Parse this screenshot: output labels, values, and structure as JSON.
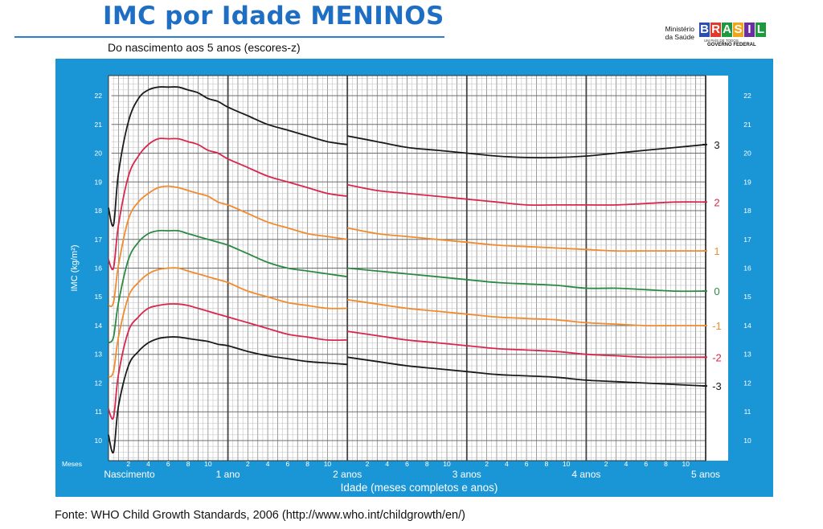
{
  "header": {
    "title": "IMC por Idade MENINOS",
    "subtitle": "Do nascimento aos 5 anos (escores-z)"
  },
  "logo": {
    "ministerio_line1": "Ministério",
    "ministerio_line2": "da Saúde",
    "letters": [
      "B",
      "R",
      "A",
      "S",
      "I",
      "L"
    ],
    "letter_colors": [
      "#2a4fb0",
      "#e03b2a",
      "#1d9a3e",
      "#f2a51c",
      "#6a2f9e",
      "#1d9a3e"
    ],
    "tagline": "UM PAÍS DE TODOS",
    "governo": "GOVERNO FEDERAL"
  },
  "source": "Fonte: WHO Child Growth Standards, 2006 (http://www.who.int/childgrowth/en/)",
  "chart_data": {
    "type": "line",
    "xlabel": "Idade (meses completos e anos)",
    "ylabel": "IMC (kg/m²)",
    "xlim": [
      0,
      60
    ],
    "ylim": [
      9.3,
      22.7
    ],
    "y_ticks": [
      10,
      11,
      12,
      13,
      14,
      15,
      16,
      17,
      18,
      19,
      20,
      21,
      22
    ],
    "month_label": "Meses",
    "month_ticks": [
      "2",
      "4",
      "6",
      "8",
      "10"
    ],
    "year_labels": [
      {
        "x": 0,
        "label": "Nascimento"
      },
      {
        "x": 12,
        "label": "1 ano"
      },
      {
        "x": 24,
        "label": "2 anos"
      },
      {
        "x": 36,
        "label": "3 anos"
      },
      {
        "x": 48,
        "label": "4 anos"
      },
      {
        "x": 60,
        "label": "5 anos"
      }
    ],
    "grid": true,
    "x_break": 24,
    "series": [
      {
        "name": "3",
        "color": "#1a1a1a",
        "x": [
          0,
          0.5,
          1,
          2,
          3,
          4,
          5,
          6,
          7,
          8,
          9,
          10,
          11,
          12,
          14,
          16,
          18,
          20,
          22,
          24,
          24,
          27,
          30,
          33,
          36,
          39,
          42,
          45,
          48,
          51,
          54,
          57,
          60
        ],
        "y": [
          18.1,
          17.5,
          19.3,
          21.1,
          21.9,
          22.2,
          22.3,
          22.3,
          22.3,
          22.2,
          22.1,
          21.9,
          21.8,
          21.6,
          21.3,
          21.0,
          20.8,
          20.6,
          20.4,
          20.3,
          20.6,
          20.4,
          20.2,
          20.1,
          20.0,
          19.9,
          19.85,
          19.85,
          19.9,
          20.0,
          20.1,
          20.2,
          20.3
        ]
      },
      {
        "name": "2",
        "color": "#d8264d",
        "x": [
          0,
          0.5,
          1,
          2,
          3,
          4,
          5,
          6,
          7,
          8,
          9,
          10,
          11,
          12,
          14,
          16,
          18,
          20,
          22,
          24,
          24,
          27,
          30,
          33,
          36,
          39,
          42,
          45,
          48,
          51,
          54,
          57,
          60
        ],
        "y": [
          16.3,
          16.0,
          17.5,
          19.2,
          19.9,
          20.3,
          20.5,
          20.5,
          20.5,
          20.4,
          20.3,
          20.1,
          20.0,
          19.8,
          19.5,
          19.2,
          19.0,
          18.8,
          18.6,
          18.5,
          18.9,
          18.7,
          18.6,
          18.5,
          18.4,
          18.3,
          18.2,
          18.2,
          18.2,
          18.2,
          18.25,
          18.3,
          18.3
        ]
      },
      {
        "name": "1",
        "color": "#f28a2e",
        "x": [
          0,
          0.5,
          1,
          2,
          3,
          4,
          5,
          6,
          7,
          8,
          9,
          10,
          11,
          12,
          14,
          16,
          18,
          20,
          22,
          24,
          24,
          27,
          30,
          33,
          36,
          39,
          42,
          45,
          48,
          51,
          54,
          57,
          60
        ],
        "y": [
          14.7,
          14.8,
          16.1,
          17.7,
          18.3,
          18.6,
          18.8,
          18.85,
          18.8,
          18.7,
          18.6,
          18.5,
          18.3,
          18.2,
          17.9,
          17.6,
          17.4,
          17.2,
          17.1,
          17.0,
          17.4,
          17.2,
          17.1,
          17.0,
          16.9,
          16.8,
          16.75,
          16.7,
          16.65,
          16.6,
          16.6,
          16.6,
          16.6
        ]
      },
      {
        "name": "0",
        "color": "#2b8a42",
        "x": [
          0,
          0.5,
          1,
          2,
          3,
          4,
          5,
          6,
          7,
          8,
          9,
          10,
          11,
          12,
          14,
          16,
          18,
          20,
          22,
          24,
          24,
          27,
          30,
          33,
          36,
          39,
          42,
          45,
          48,
          51,
          54,
          57,
          60
        ],
        "y": [
          13.4,
          13.6,
          14.8,
          16.3,
          16.9,
          17.2,
          17.3,
          17.3,
          17.3,
          17.2,
          17.1,
          17.0,
          16.9,
          16.8,
          16.5,
          16.2,
          16.0,
          15.9,
          15.8,
          15.7,
          16.0,
          15.9,
          15.8,
          15.7,
          15.6,
          15.5,
          15.45,
          15.4,
          15.3,
          15.3,
          15.25,
          15.2,
          15.2
        ]
      },
      {
        "name": "-1",
        "color": "#f28a2e",
        "x": [
          0,
          0.5,
          1,
          2,
          3,
          4,
          5,
          6,
          7,
          8,
          9,
          10,
          11,
          12,
          14,
          16,
          18,
          20,
          22,
          24,
          24,
          27,
          30,
          33,
          36,
          39,
          42,
          45,
          48,
          51,
          54,
          57,
          60
        ],
        "y": [
          12.2,
          12.4,
          13.6,
          15.0,
          15.5,
          15.8,
          15.95,
          16.0,
          16.0,
          15.9,
          15.8,
          15.7,
          15.6,
          15.5,
          15.2,
          15.0,
          14.8,
          14.7,
          14.6,
          14.6,
          14.9,
          14.75,
          14.6,
          14.5,
          14.4,
          14.3,
          14.25,
          14.2,
          14.1,
          14.05,
          14.0,
          14.0,
          14.0
        ]
      },
      {
        "name": "-2",
        "color": "#d8264d",
        "x": [
          0,
          0.5,
          1,
          2,
          3,
          4,
          5,
          6,
          7,
          8,
          9,
          10,
          11,
          12,
          14,
          16,
          18,
          20,
          22,
          24,
          24,
          27,
          30,
          33,
          36,
          39,
          42,
          45,
          48,
          51,
          54,
          57,
          60
        ],
        "y": [
          11.1,
          10.8,
          12.3,
          13.8,
          14.3,
          14.6,
          14.7,
          14.75,
          14.75,
          14.7,
          14.6,
          14.5,
          14.4,
          14.3,
          14.1,
          13.9,
          13.7,
          13.6,
          13.5,
          13.5,
          13.8,
          13.65,
          13.5,
          13.4,
          13.3,
          13.2,
          13.15,
          13.1,
          13.0,
          12.95,
          12.9,
          12.9,
          12.9
        ]
      },
      {
        "name": "-3",
        "color": "#1a1a1a",
        "x": [
          0,
          0.5,
          1,
          2,
          3,
          4,
          5,
          6,
          7,
          8,
          9,
          10,
          11,
          12,
          14,
          16,
          18,
          20,
          22,
          24,
          24,
          27,
          30,
          33,
          36,
          39,
          42,
          45,
          48,
          51,
          54,
          57,
          60
        ],
        "y": [
          10.2,
          9.6,
          11.2,
          12.6,
          13.1,
          13.4,
          13.55,
          13.6,
          13.6,
          13.55,
          13.5,
          13.45,
          13.35,
          13.3,
          13.1,
          12.95,
          12.85,
          12.75,
          12.7,
          12.65,
          12.9,
          12.75,
          12.6,
          12.5,
          12.4,
          12.3,
          12.25,
          12.2,
          12.1,
          12.05,
          12.0,
          11.95,
          11.9
        ]
      }
    ]
  }
}
